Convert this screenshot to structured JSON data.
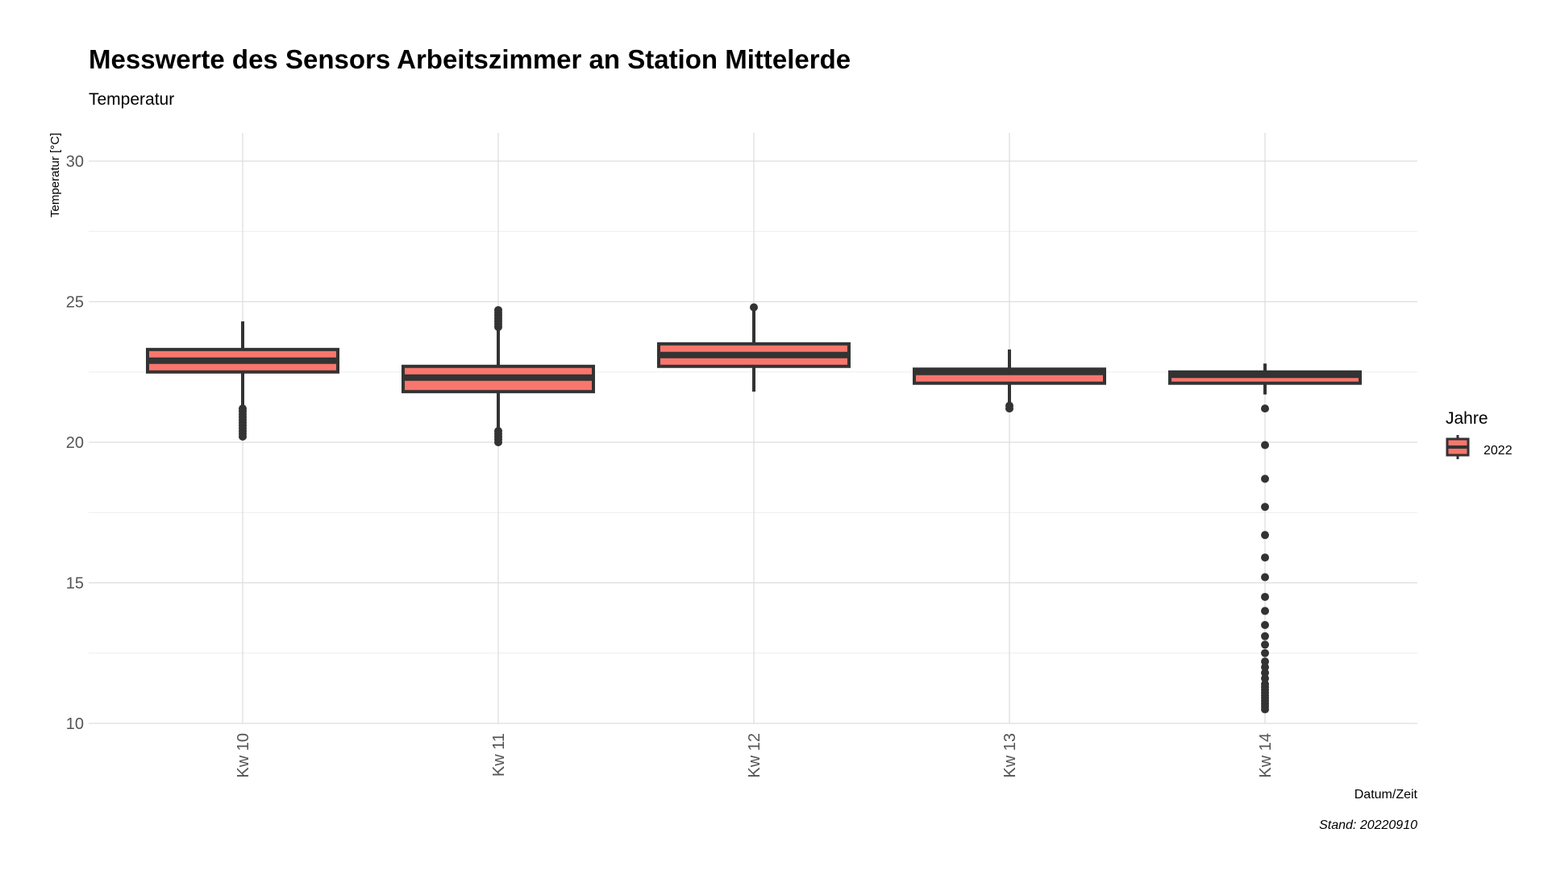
{
  "chart_data": {
    "type": "boxplot",
    "title": "Messwerte des Sensors Arbeitszimmer an Station Mittelerde",
    "subtitle": "Temperatur",
    "xlabel": "Datum/Zeit",
    "ylabel": "Temperatur [°C]",
    "caption": "Stand: 20220910",
    "ylim": [
      10,
      30
    ],
    "y_ticks": [
      10,
      15,
      20,
      25,
      30
    ],
    "grid": true,
    "legend": {
      "title": "Jahre",
      "position": "right",
      "entries": [
        "2022"
      ]
    },
    "colors": {
      "box_fill": "#f8766d",
      "box_line": "#333333",
      "grid": "#dddddd",
      "grid_minor": "#eeeeee"
    },
    "categories": [
      "Kw 10",
      "Kw 11",
      "Kw 12",
      "Kw 13",
      "Kw 14"
    ],
    "series": [
      {
        "name": "2022",
        "boxes": [
          {
            "category": "Kw 10",
            "whisker_low": 21.3,
            "q1": 22.5,
            "median": 22.9,
            "q3": 23.3,
            "whisker_high": 24.3,
            "outliers": [
              21.2,
              21.1,
              21.0,
              20.9,
              20.8,
              20.7,
              20.6,
              20.5,
              20.4,
              20.3,
              20.2
            ]
          },
          {
            "category": "Kw 11",
            "whisker_low": 20.5,
            "q1": 21.8,
            "median": 22.3,
            "q3": 22.7,
            "whisker_high": 24.0,
            "outliers": [
              24.7,
              24.6,
              24.5,
              24.4,
              24.3,
              24.2,
              24.1,
              20.4,
              20.3,
              20.2,
              20.1,
              20.0
            ]
          },
          {
            "category": "Kw 12",
            "whisker_low": 21.8,
            "q1": 22.7,
            "median": 23.1,
            "q3": 23.5,
            "whisker_high": 24.7,
            "outliers": [
              24.8
            ]
          },
          {
            "category": "Kw 13",
            "whisker_low": 21.4,
            "q1": 22.1,
            "median": 22.5,
            "q3": 22.6,
            "whisker_high": 23.3,
            "outliers": [
              21.3,
              21.2
            ]
          },
          {
            "category": "Kw 14",
            "whisker_low": 21.7,
            "q1": 22.1,
            "median": 22.4,
            "q3": 22.5,
            "whisker_high": 22.8,
            "outliers": [
              21.2,
              19.9,
              18.7,
              17.7,
              16.7,
              15.9,
              15.2,
              14.5,
              14.0,
              13.5,
              13.1,
              12.8,
              12.5,
              12.2,
              12.0,
              11.8,
              11.6,
              11.4,
              11.3,
              11.2,
              11.1,
              11.0,
              10.9,
              10.8,
              10.7,
              10.6,
              10.5
            ]
          }
        ]
      }
    ]
  }
}
